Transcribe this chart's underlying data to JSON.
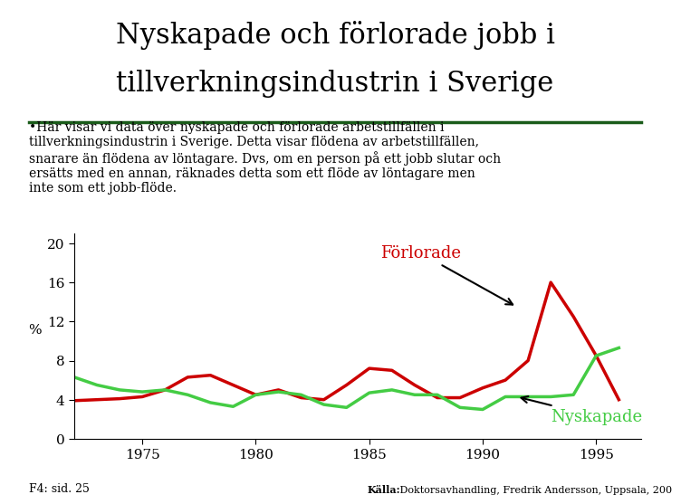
{
  "title_line1": "Nyskapade och förlorade jobb i",
  "title_line2": "tillverkningsindustrin i Sverige",
  "subtitle": "•Här visar vi data över nyskapade och förlorade arbetstillfällen i\ntillverkningsindustrin i Sverige. Detta visar flödena av arbetstillfällen,\nsnarare än flödena av löntagare. Dvs, om en person på ett jobb slutar och\nersätts med en annan, räknades detta som ett flöde av löntagare men\ninte som ett jobb-flöde.",
  "ylabel": "%",
  "xlabel_ticks": [
    1975,
    1980,
    1985,
    1990,
    1995
  ],
  "yticks": [
    0,
    4,
    8,
    12,
    16,
    20
  ],
  "ylim": [
    0,
    21
  ],
  "xlim": [
    1972,
    1997
  ],
  "background_color": "#ffffff",
  "title_color": "#000000",
  "title_fontsize": 22,
  "subtitle_fontsize": 10,
  "forlorade_label": "Förlorade",
  "nyskapade_label": "Nyskapade",
  "forlorade_color": "#cc0000",
  "nyskapade_color": "#44cc44",
  "years_forlorade": [
    1972,
    1973,
    1974,
    1975,
    1976,
    1977,
    1978,
    1979,
    1980,
    1981,
    1982,
    1983,
    1984,
    1985,
    1986,
    1987,
    1988,
    1989,
    1990,
    1991,
    1992,
    1993,
    1994,
    1995,
    1996
  ],
  "values_forlorade": [
    3.9,
    4.0,
    4.1,
    4.3,
    5.0,
    6.3,
    6.5,
    5.5,
    4.5,
    5.0,
    4.2,
    4.0,
    5.5,
    7.2,
    7.0,
    5.5,
    4.2,
    4.2,
    5.2,
    6.0,
    8.0,
    16.0,
    12.5,
    8.5,
    4.0
  ],
  "years_nyskapade": [
    1972,
    1973,
    1974,
    1975,
    1976,
    1977,
    1978,
    1979,
    1980,
    1981,
    1982,
    1983,
    1984,
    1985,
    1986,
    1987,
    1988,
    1989,
    1990,
    1991,
    1992,
    1993,
    1994,
    1995,
    1996
  ],
  "values_nyskapade": [
    6.3,
    5.5,
    5.0,
    4.8,
    5.0,
    4.5,
    3.7,
    3.3,
    4.5,
    4.8,
    4.5,
    3.5,
    3.2,
    4.7,
    5.0,
    4.5,
    4.5,
    3.2,
    3.0,
    4.3,
    4.3,
    4.3,
    4.5,
    8.5,
    9.3
  ],
  "footer_left": "F4: sid. 25",
  "footer_right_bold": "Källa:",
  "footer_right_normal": " Doktorsavhandling, Fredrik Andersson, Uppsala, 200",
  "line_color_under_title": "#1a5c1a"
}
